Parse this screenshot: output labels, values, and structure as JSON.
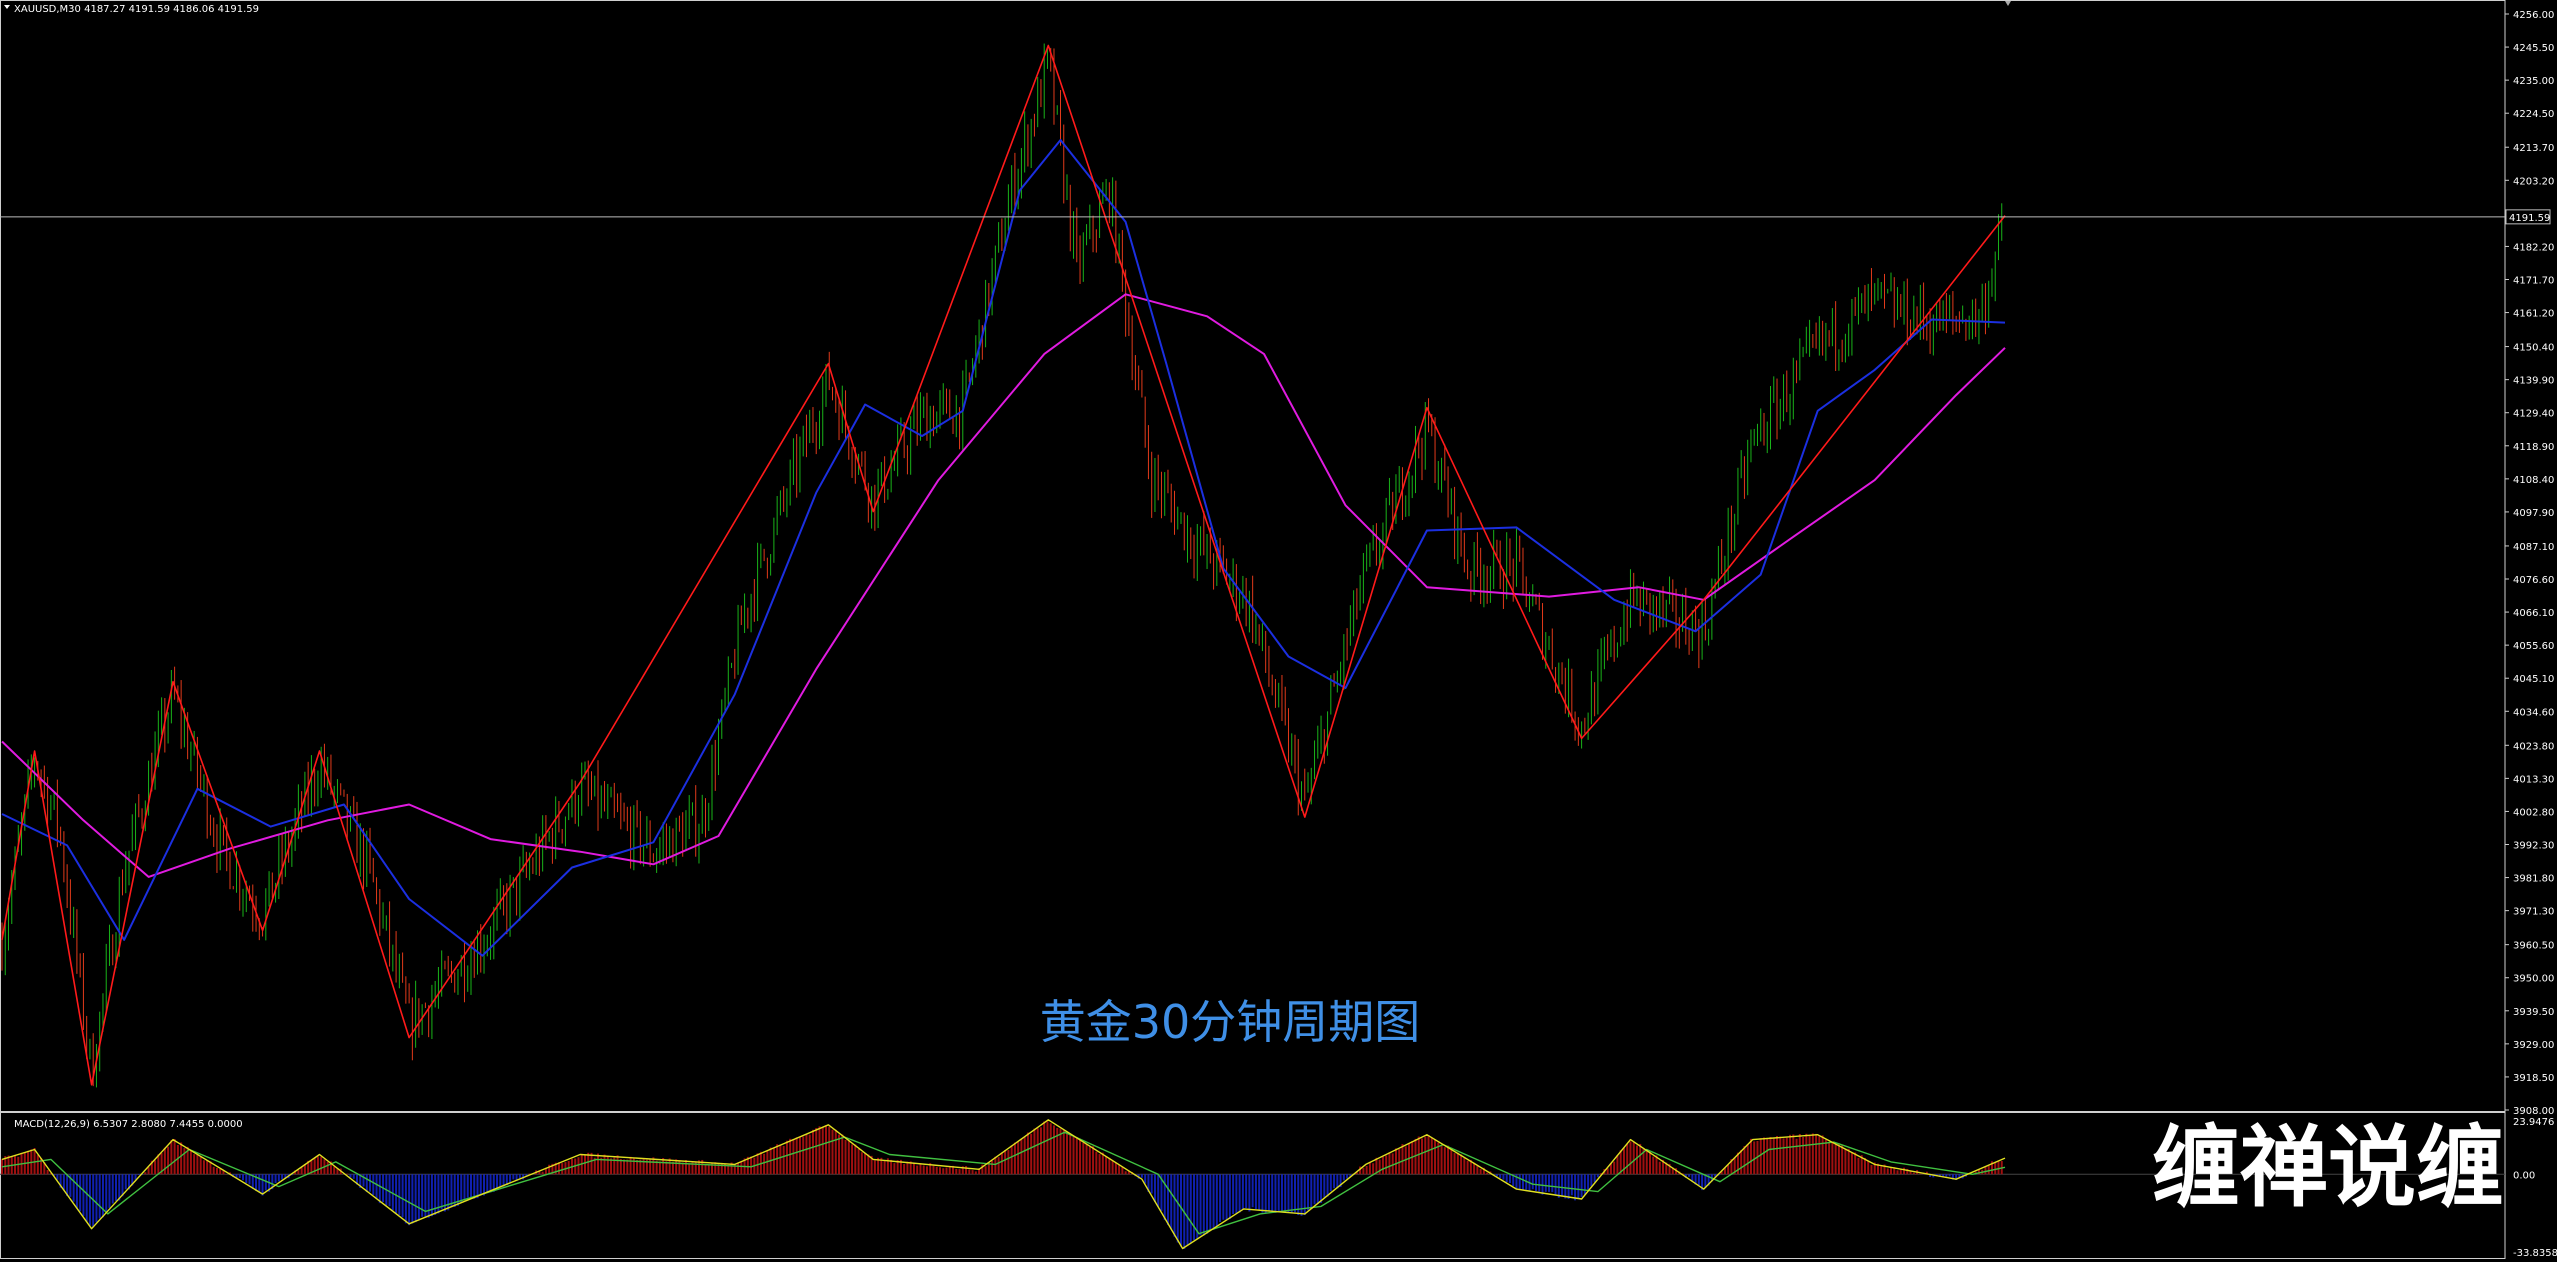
{
  "window": {
    "symbol_header": "XAUUSD,M30  4187.27 4191.59 4186.06 4191.59",
    "macd_header": "MACD(12,26,9) 6.5307 2.8080 7.4455 0.0000",
    "caption": "黄金30分钟周期图",
    "watermark": "缠禅说缠"
  },
  "colors": {
    "background": "#000000",
    "bull_candle": "#19b319",
    "bear_candle": "#e23a1a",
    "zigzag": "#ff1a1a",
    "ma_fast": "#1b2fe0",
    "ma_slow": "#e01be0",
    "hist_positive": "#a01010",
    "hist_negative": "#1020b0",
    "macd_line": "#e0e020",
    "signal_line": "#40c040",
    "caption": "#3f8fe6"
  },
  "chart_data": [
    {
      "type": "candlestick",
      "symbol": "XAUUSD",
      "timeframe": "M30",
      "ylim": [
        3908.0,
        4256.0
      ],
      "y_ticks": [
        "4256.00",
        "4245.50",
        "4235.00",
        "4224.50",
        "4213.70",
        "4203.20",
        "4182.20",
        "4171.70",
        "4161.20",
        "4150.40",
        "4139.90",
        "4129.40",
        "4118.90",
        "4108.40",
        "4097.90",
        "4087.10",
        "4076.60",
        "4066.10",
        "4055.60",
        "4045.10",
        "4034.60",
        "4023.80",
        "4013.30",
        "4002.80",
        "3992.30",
        "3981.80",
        "3971.30",
        "3960.50",
        "3950.00",
        "3939.50",
        "3929.00",
        "3918.50",
        "3908.00"
      ],
      "current_price": 4191.59,
      "current_price_label": "4191.59",
      "bar_count": 620,
      "zigzag": [
        {
          "bar": 0,
          "price": 3962
        },
        {
          "bar": 8,
          "price": 4022
        },
        {
          "bar": 22,
          "price": 3916
        },
        {
          "bar": 42,
          "price": 4044
        },
        {
          "bar": 64,
          "price": 3965
        },
        {
          "bar": 78,
          "price": 4022
        },
        {
          "bar": 100,
          "price": 3931
        },
        {
          "bar": 142,
          "price": 4012
        },
        {
          "bar": 203,
          "price": 4145
        },
        {
          "bar": 214,
          "price": 4098
        },
        {
          "bar": 257,
          "price": 4246
        },
        {
          "bar": 320,
          "price": 4001
        },
        {
          "bar": 350,
          "price": 4131
        },
        {
          "bar": 388,
          "price": 4026
        },
        {
          "bar": 418,
          "price": 4070
        },
        {
          "bar": 492,
          "price": 4192
        }
      ],
      "ma_fast": [
        {
          "bar": 0,
          "price": 4002
        },
        {
          "bar": 16,
          "price": 3992
        },
        {
          "bar": 30,
          "price": 3962
        },
        {
          "bar": 48,
          "price": 4010
        },
        {
          "bar": 66,
          "price": 3998
        },
        {
          "bar": 84,
          "price": 4005
        },
        {
          "bar": 100,
          "price": 3975
        },
        {
          "bar": 118,
          "price": 3957
        },
        {
          "bar": 140,
          "price": 3985
        },
        {
          "bar": 160,
          "price": 3993
        },
        {
          "bar": 180,
          "price": 4040
        },
        {
          "bar": 200,
          "price": 4104
        },
        {
          "bar": 212,
          "price": 4132
        },
        {
          "bar": 226,
          "price": 4122
        },
        {
          "bar": 236,
          "price": 4130
        },
        {
          "bar": 250,
          "price": 4200
        },
        {
          "bar": 260,
          "price": 4216
        },
        {
          "bar": 276,
          "price": 4190
        },
        {
          "bar": 286,
          "price": 4145
        },
        {
          "bar": 300,
          "price": 4080
        },
        {
          "bar": 316,
          "price": 4052
        },
        {
          "bar": 330,
          "price": 4042
        },
        {
          "bar": 350,
          "price": 4092
        },
        {
          "bar": 372,
          "price": 4093
        },
        {
          "bar": 396,
          "price": 4070
        },
        {
          "bar": 416,
          "price": 4060
        },
        {
          "bar": 432,
          "price": 4078
        },
        {
          "bar": 446,
          "price": 4130
        },
        {
          "bar": 460,
          "price": 4143
        },
        {
          "bar": 474,
          "price": 4159
        },
        {
          "bar": 492,
          "price": 4158
        }
      ],
      "ma_slow": [
        {
          "bar": 0,
          "price": 4025
        },
        {
          "bar": 20,
          "price": 4000
        },
        {
          "bar": 36,
          "price": 3982
        },
        {
          "bar": 56,
          "price": 3991
        },
        {
          "bar": 80,
          "price": 4000
        },
        {
          "bar": 100,
          "price": 4005
        },
        {
          "bar": 120,
          "price": 3994
        },
        {
          "bar": 142,
          "price": 3990
        },
        {
          "bar": 160,
          "price": 3986
        },
        {
          "bar": 176,
          "price": 3995
        },
        {
          "bar": 200,
          "price": 4048
        },
        {
          "bar": 230,
          "price": 4108
        },
        {
          "bar": 256,
          "price": 4148
        },
        {
          "bar": 276,
          "price": 4167
        },
        {
          "bar": 296,
          "price": 4160
        },
        {
          "bar": 310,
          "price": 4148
        },
        {
          "bar": 330,
          "price": 4100
        },
        {
          "bar": 350,
          "price": 4074
        },
        {
          "bar": 380,
          "price": 4071
        },
        {
          "bar": 402,
          "price": 4074
        },
        {
          "bar": 418,
          "price": 4070
        },
        {
          "bar": 440,
          "price": 4090
        },
        {
          "bar": 460,
          "price": 4108
        },
        {
          "bar": 480,
          "price": 4135
        },
        {
          "bar": 492,
          "price": 4150
        }
      ],
      "close_path": [
        {
          "bar": 0,
          "price": 3962
        },
        {
          "bar": 8,
          "price": 4020
        },
        {
          "bar": 14,
          "price": 3998
        },
        {
          "bar": 22,
          "price": 3920
        },
        {
          "bar": 30,
          "price": 3985
        },
        {
          "bar": 42,
          "price": 4040
        },
        {
          "bar": 54,
          "price": 3990
        },
        {
          "bar": 64,
          "price": 3970
        },
        {
          "bar": 78,
          "price": 4018
        },
        {
          "bar": 90,
          "price": 3985
        },
        {
          "bar": 100,
          "price": 3935
        },
        {
          "bar": 120,
          "price": 3965
        },
        {
          "bar": 142,
          "price": 4010
        },
        {
          "bar": 160,
          "price": 3990
        },
        {
          "bar": 172,
          "price": 4000
        },
        {
          "bar": 182,
          "price": 4065
        },
        {
          "bar": 203,
          "price": 4140
        },
        {
          "bar": 214,
          "price": 4102
        },
        {
          "bar": 226,
          "price": 4128
        },
        {
          "bar": 236,
          "price": 4130
        },
        {
          "bar": 248,
          "price": 4200
        },
        {
          "bar": 257,
          "price": 4240
        },
        {
          "bar": 264,
          "price": 4175
        },
        {
          "bar": 272,
          "price": 4200
        },
        {
          "bar": 282,
          "price": 4110
        },
        {
          "bar": 292,
          "price": 4090
        },
        {
          "bar": 306,
          "price": 4070
        },
        {
          "bar": 320,
          "price": 4005
        },
        {
          "bar": 334,
          "price": 4075
        },
        {
          "bar": 350,
          "price": 4125
        },
        {
          "bar": 360,
          "price": 4080
        },
        {
          "bar": 372,
          "price": 4080
        },
        {
          "bar": 388,
          "price": 4030
        },
        {
          "bar": 400,
          "price": 4070
        },
        {
          "bar": 418,
          "price": 4060
        },
        {
          "bar": 430,
          "price": 4120
        },
        {
          "bar": 446,
          "price": 4150
        },
        {
          "bar": 460,
          "price": 4165
        },
        {
          "bar": 474,
          "price": 4158
        },
        {
          "bar": 486,
          "price": 4160
        },
        {
          "bar": 492,
          "price": 4191.59
        }
      ]
    },
    {
      "type": "macd",
      "params": "MACD(12,26,9)",
      "ylim": [
        -33.8358,
        23.9476
      ],
      "y_ticks": [
        "23.9476",
        "0.00",
        "-33.8358"
      ],
      "macd_line": [
        {
          "bar": 0,
          "price": 6
        },
        {
          "bar": 8,
          "price": 10
        },
        {
          "bar": 22,
          "price": -22
        },
        {
          "bar": 42,
          "price": 14
        },
        {
          "bar": 64,
          "price": -8
        },
        {
          "bar": 78,
          "price": 8
        },
        {
          "bar": 100,
          "price": -20
        },
        {
          "bar": 142,
          "price": 8
        },
        {
          "bar": 180,
          "price": 4
        },
        {
          "bar": 203,
          "price": 20
        },
        {
          "bar": 214,
          "price": 6
        },
        {
          "bar": 240,
          "price": 2
        },
        {
          "bar": 257,
          "price": 22
        },
        {
          "bar": 280,
          "price": -2
        },
        {
          "bar": 290,
          "price": -30
        },
        {
          "bar": 305,
          "price": -14
        },
        {
          "bar": 320,
          "price": -16
        },
        {
          "bar": 335,
          "price": 4
        },
        {
          "bar": 350,
          "price": 16
        },
        {
          "bar": 372,
          "price": -6
        },
        {
          "bar": 388,
          "price": -10
        },
        {
          "bar": 400,
          "price": 14
        },
        {
          "bar": 418,
          "price": -6
        },
        {
          "bar": 430,
          "price": 14
        },
        {
          "bar": 446,
          "price": 16
        },
        {
          "bar": 460,
          "price": 4
        },
        {
          "bar": 480,
          "price": -2
        },
        {
          "bar": 492,
          "price": 6.5307
        }
      ],
      "signal_line": [
        {
          "bar": 0,
          "price": 3
        },
        {
          "bar": 12,
          "price": 6
        },
        {
          "bar": 26,
          "price": -16
        },
        {
          "bar": 46,
          "price": 10
        },
        {
          "bar": 68,
          "price": -5
        },
        {
          "bar": 82,
          "price": 5
        },
        {
          "bar": 104,
          "price": -15
        },
        {
          "bar": 146,
          "price": 6
        },
        {
          "bar": 184,
          "price": 3
        },
        {
          "bar": 207,
          "price": 15
        },
        {
          "bar": 218,
          "price": 8
        },
        {
          "bar": 244,
          "price": 4
        },
        {
          "bar": 261,
          "price": 17
        },
        {
          "bar": 284,
          "price": 0
        },
        {
          "bar": 294,
          "price": -24
        },
        {
          "bar": 309,
          "price": -16
        },
        {
          "bar": 324,
          "price": -13
        },
        {
          "bar": 339,
          "price": 2
        },
        {
          "bar": 354,
          "price": 12
        },
        {
          "bar": 376,
          "price": -4
        },
        {
          "bar": 392,
          "price": -7
        },
        {
          "bar": 404,
          "price": 10
        },
        {
          "bar": 422,
          "price": -3
        },
        {
          "bar": 434,
          "price": 10
        },
        {
          "bar": 450,
          "price": 13
        },
        {
          "bar": 464,
          "price": 5
        },
        {
          "bar": 484,
          "price": 0
        },
        {
          "bar": 492,
          "price": 2.808
        }
      ]
    }
  ]
}
